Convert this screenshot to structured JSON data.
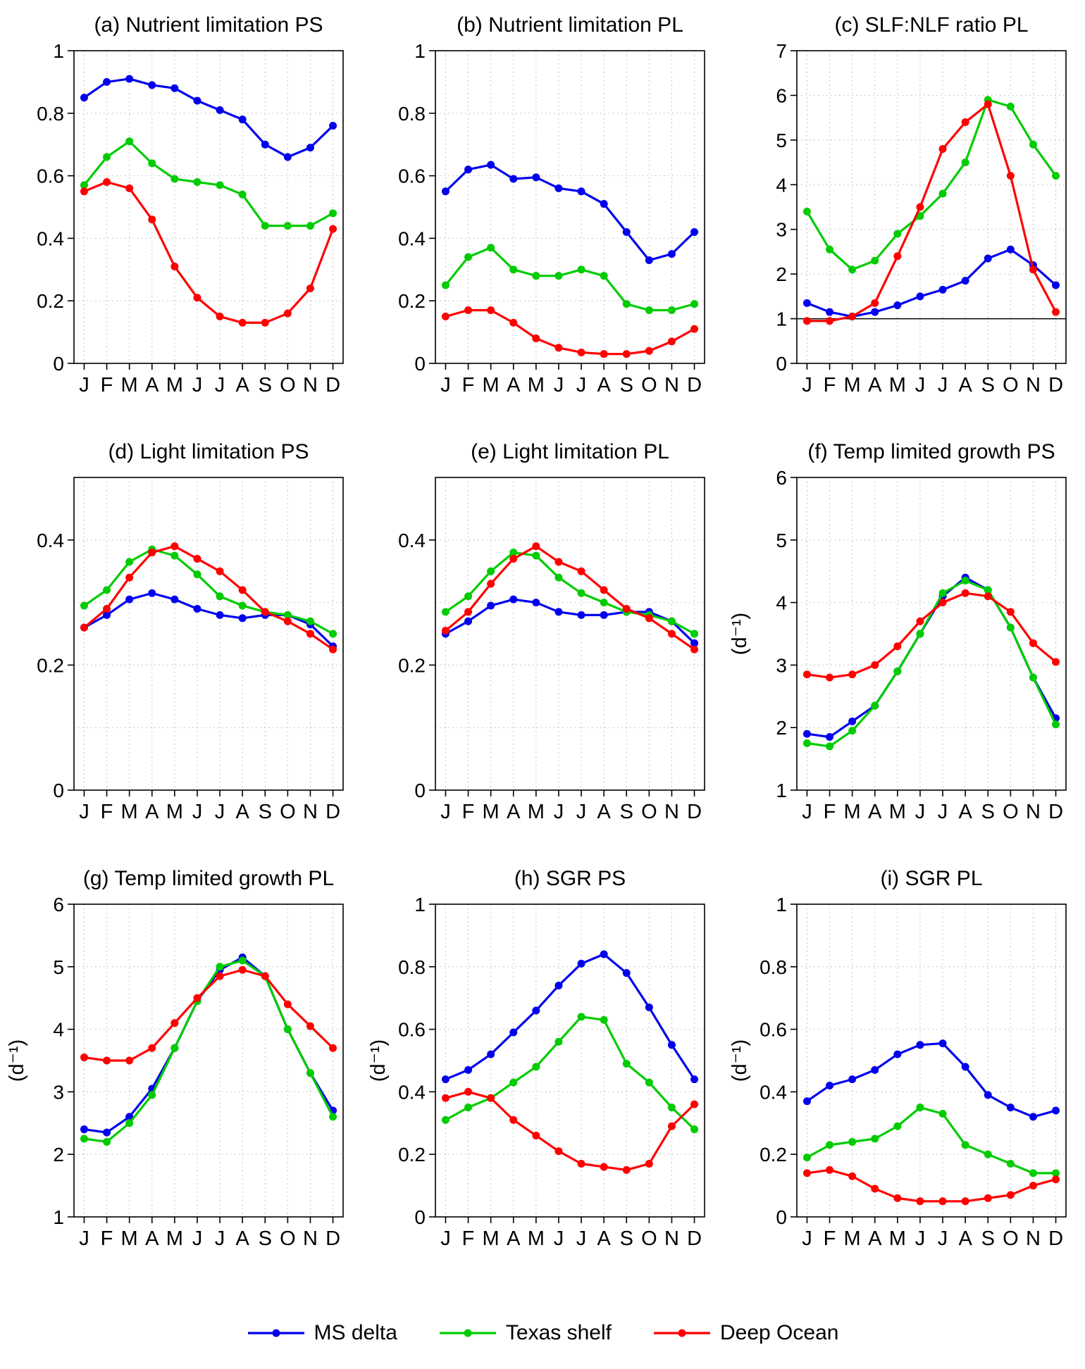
{
  "figure": {
    "background": "#ffffff"
  },
  "series_colors": {
    "MS delta": "#0000ee",
    "Texas shelf": "#00cc00",
    "Deep Ocean": "#ff0000"
  },
  "legend": [
    {
      "label": "MS delta",
      "color": "#0000ee"
    },
    {
      "label": "Texas shelf",
      "color": "#00cc00"
    },
    {
      "label": "Deep Ocean",
      "color": "#ff0000"
    }
  ],
  "chart_data": [
    {
      "type": "line",
      "title": "(a) Nutrient limitation PS",
      "ylabel": "",
      "ylim": [
        0,
        1
      ],
      "ytick_vals": [
        0,
        0.2,
        0.4,
        0.6,
        0.8,
        1
      ],
      "ytick_labels": [
        "0",
        "0.2",
        "0.4",
        "0.6",
        "0.8",
        "1"
      ],
      "grid": true,
      "refline": null,
      "categories": [
        "J",
        "F",
        "M",
        "A",
        "M",
        "J",
        "J",
        "A",
        "S",
        "O",
        "N",
        "D"
      ],
      "series": [
        {
          "name": "MS delta",
          "values": [
            0.85,
            0.9,
            0.91,
            0.89,
            0.88,
            0.84,
            0.81,
            0.78,
            0.7,
            0.66,
            0.69,
            0.76
          ]
        },
        {
          "name": "Texas shelf",
          "values": [
            0.57,
            0.66,
            0.71,
            0.64,
            0.59,
            0.58,
            0.57,
            0.54,
            0.44,
            0.44,
            0.44,
            0.48
          ]
        },
        {
          "name": "Deep Ocean",
          "values": [
            0.55,
            0.58,
            0.56,
            0.46,
            0.31,
            0.21,
            0.15,
            0.13,
            0.13,
            0.16,
            0.24,
            0.43
          ]
        }
      ]
    },
    {
      "type": "line",
      "title": "(b) Nutrient limitation PL",
      "ylabel": "",
      "ylim": [
        0,
        1
      ],
      "ytick_vals": [
        0,
        0.2,
        0.4,
        0.6,
        0.8,
        1
      ],
      "ytick_labels": [
        "0",
        "0.2",
        "0.4",
        "0.6",
        "0.8",
        "1"
      ],
      "grid": true,
      "refline": null,
      "categories": [
        "J",
        "F",
        "M",
        "A",
        "M",
        "J",
        "J",
        "A",
        "S",
        "O",
        "N",
        "D"
      ],
      "series": [
        {
          "name": "MS delta",
          "values": [
            0.55,
            0.62,
            0.635,
            0.59,
            0.595,
            0.56,
            0.55,
            0.51,
            0.42,
            0.33,
            0.35,
            0.42
          ]
        },
        {
          "name": "Texas shelf",
          "values": [
            0.25,
            0.34,
            0.37,
            0.3,
            0.28,
            0.28,
            0.3,
            0.28,
            0.19,
            0.17,
            0.17,
            0.19
          ]
        },
        {
          "name": "Deep Ocean",
          "values": [
            0.15,
            0.17,
            0.17,
            0.13,
            0.08,
            0.05,
            0.035,
            0.03,
            0.03,
            0.04,
            0.07,
            0.11
          ]
        }
      ]
    },
    {
      "type": "line",
      "title": "(c) SLF:NLF ratio PL",
      "ylabel": "",
      "ylim": [
        0,
        7
      ],
      "ytick_vals": [
        0,
        1,
        2,
        3,
        4,
        5,
        6,
        7
      ],
      "ytick_labels": [
        "0",
        "1",
        "2",
        "3",
        "4",
        "5",
        "6",
        "7"
      ],
      "grid": true,
      "refline": 1,
      "categories": [
        "J",
        "F",
        "M",
        "A",
        "M",
        "J",
        "J",
        "A",
        "S",
        "O",
        "N",
        "D"
      ],
      "series": [
        {
          "name": "MS delta",
          "values": [
            1.35,
            1.15,
            1.05,
            1.15,
            1.3,
            1.5,
            1.65,
            1.85,
            2.35,
            2.55,
            2.2,
            1.75
          ]
        },
        {
          "name": "Texas shelf",
          "values": [
            3.4,
            2.55,
            2.1,
            2.3,
            2.9,
            3.3,
            3.8,
            4.5,
            5.9,
            5.75,
            4.9,
            4.2
          ]
        },
        {
          "name": "Deep Ocean",
          "values": [
            0.95,
            0.95,
            1.05,
            1.35,
            2.4,
            3.5,
            4.8,
            5.4,
            5.8,
            4.2,
            2.1,
            1.15
          ]
        }
      ]
    },
    {
      "type": "line",
      "title": "(d) Light limitation PS",
      "ylabel": "",
      "ylim": [
        0,
        0.5
      ],
      "ytick_vals": [
        0,
        0.1,
        0.2,
        0.3,
        0.4,
        0.5
      ],
      "ytick_labels": [
        "0",
        "",
        "0.2",
        "",
        "0.4",
        ""
      ],
      "grid": true,
      "refline": null,
      "categories": [
        "J",
        "F",
        "M",
        "A",
        "M",
        "J",
        "J",
        "A",
        "S",
        "O",
        "N",
        "D"
      ],
      "series": [
        {
          "name": "MS delta",
          "values": [
            0.26,
            0.28,
            0.305,
            0.315,
            0.305,
            0.29,
            0.28,
            0.275,
            0.28,
            0.28,
            0.265,
            0.23
          ]
        },
        {
          "name": "Texas shelf",
          "values": [
            0.295,
            0.32,
            0.365,
            0.385,
            0.375,
            0.345,
            0.31,
            0.295,
            0.285,
            0.28,
            0.27,
            0.25
          ]
        },
        {
          "name": "Deep Ocean",
          "values": [
            0.26,
            0.29,
            0.34,
            0.38,
            0.39,
            0.37,
            0.35,
            0.32,
            0.285,
            0.27,
            0.25,
            0.225
          ]
        }
      ]
    },
    {
      "type": "line",
      "title": "(e) Light limitation PL",
      "ylabel": "",
      "ylim": [
        0,
        0.5
      ],
      "ytick_vals": [
        0,
        0.1,
        0.2,
        0.3,
        0.4,
        0.5
      ],
      "ytick_labels": [
        "0",
        "",
        "0.2",
        "",
        "0.4",
        ""
      ],
      "grid": true,
      "refline": null,
      "categories": [
        "J",
        "F",
        "M",
        "A",
        "M",
        "J",
        "J",
        "A",
        "S",
        "O",
        "N",
        "D"
      ],
      "series": [
        {
          "name": "MS delta",
          "values": [
            0.25,
            0.27,
            0.295,
            0.305,
            0.3,
            0.285,
            0.28,
            0.28,
            0.285,
            0.285,
            0.27,
            0.235
          ]
        },
        {
          "name": "Texas shelf",
          "values": [
            0.285,
            0.31,
            0.35,
            0.38,
            0.375,
            0.34,
            0.315,
            0.3,
            0.285,
            0.28,
            0.27,
            0.25
          ]
        },
        {
          "name": "Deep Ocean",
          "values": [
            0.255,
            0.285,
            0.33,
            0.37,
            0.39,
            0.365,
            0.35,
            0.32,
            0.29,
            0.275,
            0.25,
            0.225
          ]
        }
      ]
    },
    {
      "type": "line",
      "title": "(f) Temp limited growth PS",
      "ylabel": "(d⁻¹)",
      "ylim": [
        1,
        6
      ],
      "ytick_vals": [
        1,
        2,
        3,
        4,
        5,
        6
      ],
      "ytick_labels": [
        "1",
        "2",
        "3",
        "4",
        "5",
        "6"
      ],
      "grid": true,
      "refline": null,
      "categories": [
        "J",
        "F",
        "M",
        "A",
        "M",
        "J",
        "J",
        "A",
        "S",
        "O",
        "N",
        "D"
      ],
      "series": [
        {
          "name": "MS delta",
          "values": [
            1.9,
            1.85,
            2.1,
            2.35,
            2.9,
            3.5,
            4.1,
            4.4,
            4.2,
            3.6,
            2.8,
            2.15
          ]
        },
        {
          "name": "Texas shelf",
          "values": [
            1.75,
            1.7,
            1.95,
            2.35,
            2.9,
            3.5,
            4.15,
            4.35,
            4.2,
            3.6,
            2.8,
            2.05
          ]
        },
        {
          "name": "Deep Ocean",
          "values": [
            2.85,
            2.8,
            2.85,
            3.0,
            3.3,
            3.7,
            4.0,
            4.15,
            4.1,
            3.85,
            3.35,
            3.05
          ]
        }
      ]
    },
    {
      "type": "line",
      "title": "(g) Temp limited growth PL",
      "ylabel": "(d⁻¹)",
      "ylim": [
        1,
        6
      ],
      "ytick_vals": [
        1,
        2,
        3,
        4,
        5,
        6
      ],
      "ytick_labels": [
        "1",
        "2",
        "3",
        "4",
        "5",
        "6"
      ],
      "grid": true,
      "refline": null,
      "categories": [
        "J",
        "F",
        "M",
        "A",
        "M",
        "J",
        "J",
        "A",
        "S",
        "O",
        "N",
        "D"
      ],
      "series": [
        {
          "name": "MS delta",
          "values": [
            2.4,
            2.35,
            2.6,
            3.05,
            3.7,
            4.45,
            4.95,
            5.15,
            4.85,
            4.0,
            3.3,
            2.7
          ]
        },
        {
          "name": "Texas shelf",
          "values": [
            2.25,
            2.2,
            2.5,
            2.95,
            3.7,
            4.45,
            5.0,
            5.1,
            4.85,
            4.0,
            3.3,
            2.6
          ]
        },
        {
          "name": "Deep Ocean",
          "values": [
            3.55,
            3.5,
            3.5,
            3.7,
            4.1,
            4.5,
            4.85,
            4.95,
            4.85,
            4.4,
            4.05,
            3.7
          ]
        }
      ]
    },
    {
      "type": "line",
      "title": "(h) SGR PS",
      "ylabel": "(d⁻¹)",
      "ylim": [
        0,
        1
      ],
      "ytick_vals": [
        0,
        0.2,
        0.4,
        0.6,
        0.8,
        1
      ],
      "ytick_labels": [
        "0",
        "0.2",
        "0.4",
        "0.6",
        "0.8",
        "1"
      ],
      "grid": true,
      "refline": null,
      "categories": [
        "J",
        "F",
        "M",
        "A",
        "M",
        "J",
        "J",
        "A",
        "S",
        "O",
        "N",
        "D"
      ],
      "series": [
        {
          "name": "MS delta",
          "values": [
            0.44,
            0.47,
            0.52,
            0.59,
            0.66,
            0.74,
            0.81,
            0.84,
            0.78,
            0.67,
            0.55,
            0.44
          ]
        },
        {
          "name": "Texas shelf",
          "values": [
            0.31,
            0.35,
            0.38,
            0.43,
            0.48,
            0.56,
            0.64,
            0.63,
            0.49,
            0.43,
            0.35,
            0.28
          ]
        },
        {
          "name": "Deep Ocean",
          "values": [
            0.38,
            0.4,
            0.38,
            0.31,
            0.26,
            0.21,
            0.17,
            0.16,
            0.15,
            0.17,
            0.29,
            0.36
          ]
        }
      ]
    },
    {
      "type": "line",
      "title": "(i) SGR PL",
      "ylabel": "(d⁻¹)",
      "ylim": [
        0,
        1
      ],
      "ytick_vals": [
        0,
        0.2,
        0.4,
        0.6,
        0.8,
        1
      ],
      "ytick_labels": [
        "0",
        "0.2",
        "0.4",
        "0.6",
        "0.8",
        "1"
      ],
      "grid": true,
      "refline": null,
      "categories": [
        "J",
        "F",
        "M",
        "A",
        "M",
        "J",
        "J",
        "A",
        "S",
        "O",
        "N",
        "D"
      ],
      "series": [
        {
          "name": "MS delta",
          "values": [
            0.37,
            0.42,
            0.44,
            0.47,
            0.52,
            0.55,
            0.555,
            0.48,
            0.39,
            0.35,
            0.32,
            0.34
          ]
        },
        {
          "name": "Texas shelf",
          "values": [
            0.19,
            0.23,
            0.24,
            0.25,
            0.29,
            0.35,
            0.33,
            0.23,
            0.2,
            0.17,
            0.14,
            0.14
          ]
        },
        {
          "name": "Deep Ocean",
          "values": [
            0.14,
            0.15,
            0.13,
            0.09,
            0.06,
            0.05,
            0.05,
            0.05,
            0.06,
            0.07,
            0.1,
            0.12
          ]
        }
      ]
    }
  ]
}
